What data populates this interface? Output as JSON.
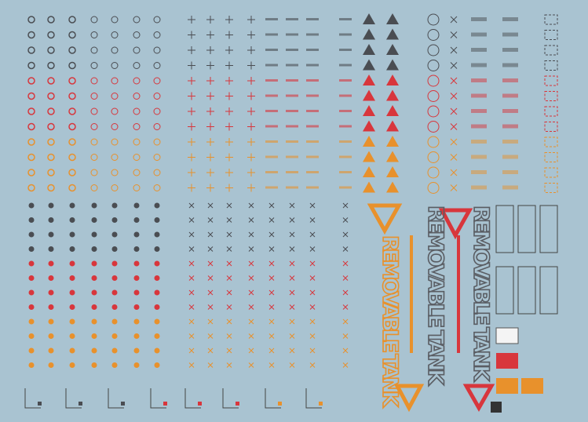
{
  "decals": {
    "tank_labels": [
      "REMOVABLE TANK",
      "REMOVABLE TANK",
      "REMOVABLE TANK"
    ]
  }
}
